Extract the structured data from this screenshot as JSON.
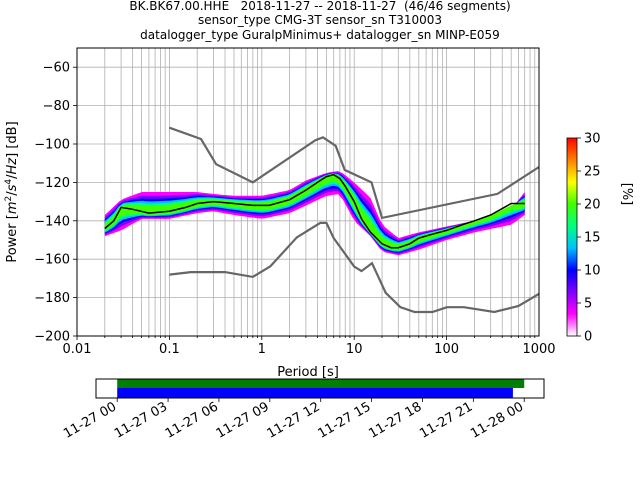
{
  "title": {
    "line1": "BK.BK67.00.HHE   2018-11-27 -- 2018-11-27  (46/46 segments)",
    "line2": "sensor_type CMG-3T sensor_sn T310003",
    "line3": "datalogger_type GuralpMinimus+ datalogger_sn MINP-E059"
  },
  "colors": {
    "nlnm_nhnm": "#666666",
    "mode": "#000000",
    "timeline_green": "#008000",
    "timeline_blue": "#0000ff",
    "grid": "#b0b0b0"
  },
  "colormap": [
    "#ffffff",
    "#ff00ff",
    "#8000ff",
    "#0000ff",
    "#00c0ff",
    "#00ff80",
    "#40ff00",
    "#ffff00",
    "#ff8000",
    "#ff0000"
  ],
  "chart_data": [
    {
      "type": "heatmap",
      "xlabel": "Period [s]",
      "ylabel": "Power [m²/s⁴/Hz] [dB]",
      "xscale": "log",
      "xlim": [
        0.01,
        1000
      ],
      "ylim": [
        -200,
        -50
      ],
      "xticks": [
        0.01,
        0.1,
        1,
        10,
        100,
        1000
      ],
      "xtick_labels": [
        "0.01",
        "0.1",
        "1",
        "10",
        "100",
        "1000"
      ],
      "yticks": [
        -200,
        -180,
        -160,
        -140,
        -120,
        -100,
        -80,
        -60
      ],
      "grid": true,
      "colorbar": {
        "label": "[%]",
        "min": 0,
        "max": 30,
        "ticks": [
          0,
          5,
          10,
          15,
          20,
          25,
          30
        ],
        "placement": "right"
      },
      "reference_curves": [
        {
          "kind": "high_noise_model",
          "x": [
            0.1,
            0.22,
            0.32,
            0.8,
            3.8,
            4.6,
            6.3,
            7.9,
            15.4,
            20,
            354.8,
            1000
          ],
          "y": [
            -91.5,
            -97.4,
            -110.5,
            -120,
            -98,
            -96.5,
            -101,
            -113.5,
            -120,
            -138.5,
            -126,
            -112
          ]
        },
        {
          "kind": "low_noise_model",
          "x": [
            0.1,
            0.17,
            0.4,
            0.8,
            1.24,
            2.4,
            4.3,
            5,
            6,
            10,
            12,
            15.6,
            21.9,
            31.6,
            45,
            70,
            101,
            154,
            328,
            600,
            1000
          ],
          "y": [
            -168,
            -166.7,
            -166.7,
            -169.2,
            -163.7,
            -148.6,
            -141.1,
            -141.1,
            -149,
            -163.8,
            -166.2,
            -162.1,
            -177.5,
            -185,
            -187.5,
            -187.5,
            -185,
            -185,
            -187.5,
            -184.4,
            -178
          ]
        }
      ],
      "mode_curve": {
        "x": [
          0.02,
          0.025,
          0.03,
          0.04,
          0.06,
          0.1,
          0.15,
          0.2,
          0.3,
          0.5,
          0.8,
          1.2,
          2,
          3,
          4,
          5,
          6,
          7,
          8,
          10,
          12,
          15,
          20,
          25,
          30,
          40,
          50,
          70,
          100,
          150,
          200,
          300,
          500,
          700
        ],
        "y": [
          -144,
          -140,
          -133,
          -134,
          -136,
          -135,
          -133,
          -131,
          -130,
          -131,
          -132,
          -132,
          -129,
          -124,
          -120,
          -117,
          -116,
          -118,
          -122,
          -130,
          -139,
          -146,
          -152,
          -154,
          -154,
          -152,
          -149,
          -147,
          -145,
          -142,
          -140,
          -137,
          -131,
          -131
        ]
      },
      "density_band": {
        "x": [
          0.02,
          0.03,
          0.05,
          0.1,
          0.2,
          0.3,
          0.5,
          1,
          2,
          3,
          5,
          7,
          10,
          15,
          20,
          30,
          50,
          100,
          200,
          500,
          700
        ],
        "ymin": [
          -148,
          -145,
          -139,
          -139,
          -136,
          -135,
          -137,
          -139,
          -136,
          -132,
          -127,
          -126,
          -140,
          -148,
          -156,
          -158,
          -155,
          -150,
          -146,
          -142,
          -137
        ],
        "ymax": [
          -137,
          -129,
          -125,
          -125,
          -125,
          -126,
          -127,
          -127,
          -124,
          -119,
          -115,
          -114,
          -120,
          -128,
          -142,
          -149,
          -146,
          -143,
          -140,
          -134,
          -125
        ]
      }
    },
    {
      "type": "bar",
      "role": "data_coverage_timeline",
      "xlim": [
        "2018-11-26 22:45",
        "2018-11-28 01:10"
      ],
      "xtick_labels": [
        "11-27 00",
        "11-27 03",
        "11-27 06",
        "11-27 09",
        "11-27 12",
        "11-27 15",
        "11-27 18",
        "11-27 21",
        "11-28 00"
      ],
      "bars": [
        {
          "color_key": "timeline_green",
          "start": "2018-11-27 00:00",
          "end": "2018-11-28 00:00"
        },
        {
          "color_key": "timeline_blue",
          "start": "2018-11-27 00:00",
          "end": "2018-11-27 23:20"
        }
      ]
    }
  ]
}
